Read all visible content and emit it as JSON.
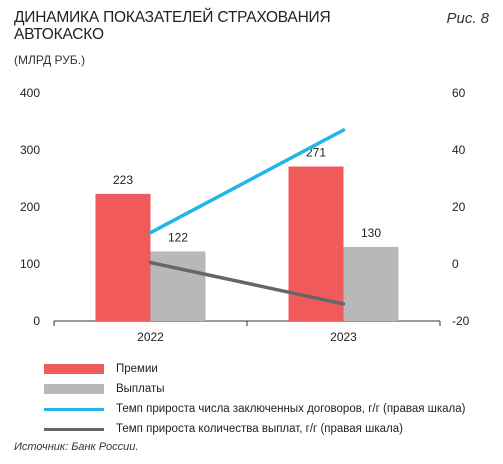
{
  "header": {
    "title": "ДИНАМИКА ПОКАЗАТЕЛЕЙ СТРАХОВАНИЯ АВТОКАСКО",
    "figure_label": "Рис. 8",
    "units": "(МЛРД РУБ.)"
  },
  "source": "Источник: Банк России.",
  "chart_data": {
    "type": "bar",
    "categories": [
      "2022",
      "2023"
    ],
    "series": [
      {
        "name": "Премии",
        "kind": "bar",
        "axis": "left",
        "values": [
          223,
          271
        ],
        "color": "#f05a5b"
      },
      {
        "name": "Выплаты",
        "kind": "bar",
        "axis": "left",
        "values": [
          122,
          130
        ],
        "color": "#b8b8b8"
      },
      {
        "name": "Темп прироста числа заключенных договоров, г/г (правая шкала)",
        "kind": "line",
        "axis": "right",
        "values": [
          11,
          47
        ],
        "color": "#22b6e8"
      },
      {
        "name": "Темп прироста количества выплат, г/г (правая шкала)",
        "kind": "line",
        "axis": "right",
        "values": [
          0.5,
          -14
        ],
        "color": "#666666"
      }
    ],
    "y_left": {
      "range": [
        0,
        400
      ],
      "ticks": [
        0,
        100,
        200,
        300,
        400
      ]
    },
    "y_right": {
      "range": [
        -20,
        60
      ],
      "ticks": [
        -20,
        0,
        20,
        40,
        60
      ]
    },
    "data_labels": [
      "223",
      "271",
      "122",
      "130"
    ],
    "legend_position": "bottom",
    "grid": false
  }
}
